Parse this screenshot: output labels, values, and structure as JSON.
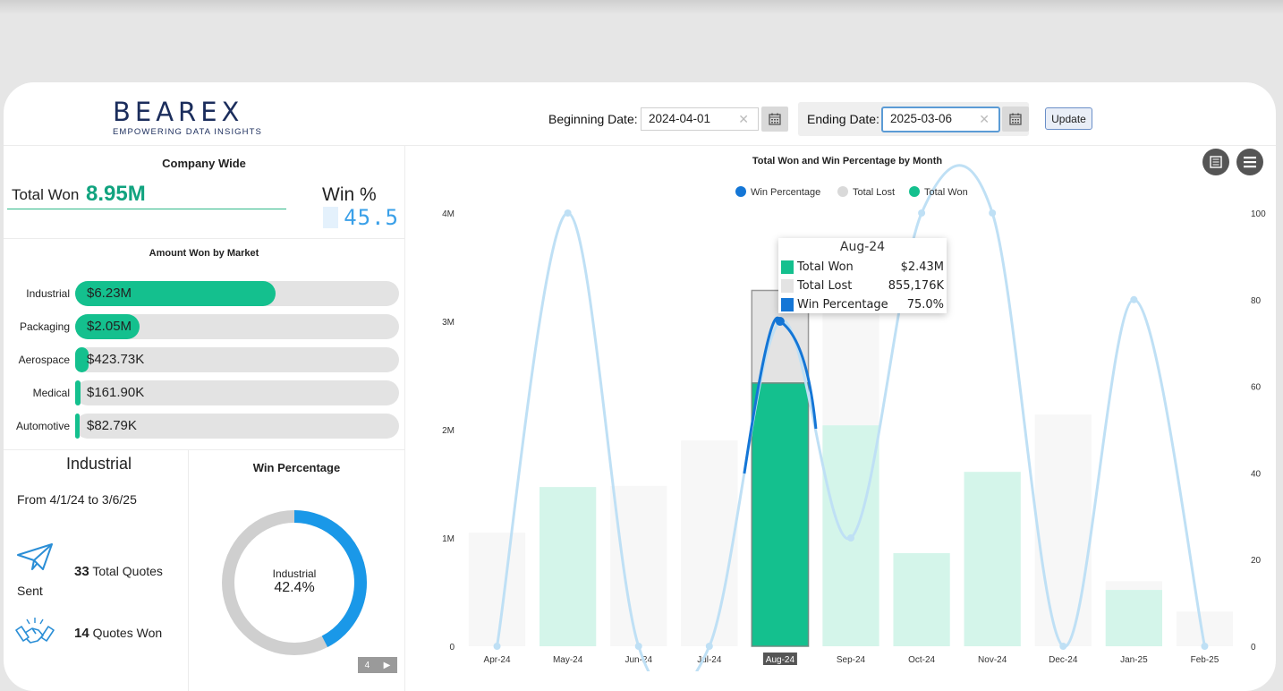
{
  "logo": {
    "word": "BEAREX",
    "tagline": "EMPOWERING DATA INSIGHTS"
  },
  "dates": {
    "begin_label": "Beginning Date:",
    "begin_value": "2024-04-01",
    "end_label": "Ending Date:",
    "end_value": "2025-03-06",
    "update_label": "Update"
  },
  "company": {
    "title": "Company Wide",
    "total_won_label": "Total Won",
    "total_won_value": "8.95M",
    "win_pct_label": "Win %",
    "win_pct_value": "45.5"
  },
  "markets": {
    "title": "Amount Won by Market",
    "items": [
      {
        "name": "Industrial",
        "value": "$6.23M",
        "fraction": 0.62
      },
      {
        "name": "Packaging",
        "value": "$2.05M",
        "fraction": 0.2
      },
      {
        "name": "Aerospace",
        "value": "$423.73K",
        "fraction": 0.042
      },
      {
        "name": "Medical",
        "value": "$161.90K",
        "fraction": 0.016
      },
      {
        "name": "Automotive",
        "value": "$82.79K",
        "fraction": 0.008
      }
    ]
  },
  "industrial": {
    "title": "Industrial",
    "range": "From 4/1/24 to 3/6/25",
    "total_quotes_count": "33",
    "total_quotes_label": "Total Quotes",
    "sent_label": "Sent",
    "quotes_won_count": "14",
    "quotes_won_label": "Quotes Won",
    "icons": [
      "paper-plane-icon",
      "handshake-icon"
    ]
  },
  "win_percentage": {
    "title": "Win Percentage",
    "center_label": "Industrial",
    "center_value": "42.4%",
    "fraction": 0.424,
    "pager": "4"
  },
  "chart_data": {
    "type": "bar",
    "title": "Total Won and Win Percentage by Month",
    "categories": [
      "Apr-24",
      "May-24",
      "Jun-24",
      "Jul-24",
      "Aug-24",
      "Sep-24",
      "Oct-24",
      "Nov-24",
      "Dec-24",
      "Jan-25",
      "Feb-25"
    ],
    "series": [
      {
        "name": "Total Won",
        "kind": "bar",
        "stack": "a",
        "color": "#14c08e",
        "values": [
          0,
          1470000,
          0,
          0,
          2430000,
          2040000,
          860000,
          1610000,
          0,
          520000,
          0
        ]
      },
      {
        "name": "Total Lost",
        "kind": "bar",
        "stack": "a",
        "color": "#e3e3e3",
        "values": [
          1050000,
          0,
          1480000,
          1900000,
          855176,
          1350000,
          0,
          0,
          2140000,
          80000,
          320000
        ]
      },
      {
        "name": "Win Percentage",
        "kind": "line",
        "axis": "right",
        "color": "#1476d6",
        "values": [
          0,
          100,
          0,
          0,
          75,
          25,
          100,
          100,
          0,
          80,
          0
        ]
      }
    ],
    "y_left": {
      "min": 0,
      "max": 4000000,
      "ticks": [
        "0",
        "1M",
        "2M",
        "3M",
        "4M"
      ]
    },
    "y_right": {
      "min": 0,
      "max": 100,
      "ticks": [
        "0",
        "20",
        "40",
        "60",
        "80",
        "100"
      ]
    },
    "legend": [
      "Win Percentage",
      "Total Lost",
      "Total Won"
    ],
    "legend_position": "top-center",
    "highlighted": "Aug-24",
    "tooltip": {
      "title": "Aug-24",
      "rows": [
        {
          "name": "Total Won",
          "value": "$2.43M",
          "color": "#14c08e"
        },
        {
          "name": "Total Lost",
          "value": "855,176K",
          "color": "#e3e3e3"
        },
        {
          "name": "Win Percentage",
          "value": "75.0%",
          "color": "#1476d6"
        }
      ]
    }
  },
  "chart_controls": [
    "table-view-icon",
    "menu-icon"
  ]
}
